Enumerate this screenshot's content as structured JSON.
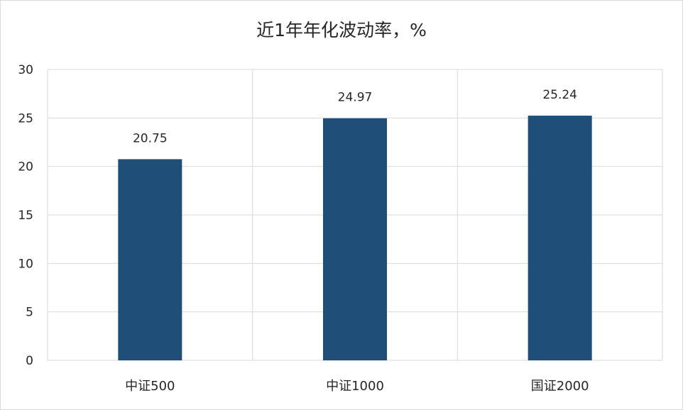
{
  "chart_data": {
    "type": "bar",
    "title": "近1年年化波动率，%",
    "categories": [
      "中证500",
      "中证1000",
      "国证2000"
    ],
    "values": [
      20.75,
      24.97,
      25.24
    ],
    "data_labels": [
      "20.75",
      "24.97",
      "25.24"
    ],
    "ylim": [
      0,
      30
    ],
    "yticks": [
      0,
      5,
      10,
      15,
      20,
      25,
      30
    ],
    "ytick_labels": [
      "0",
      "5",
      "10",
      "15",
      "20",
      "25",
      "30"
    ],
    "grid": true,
    "legend": "none",
    "bar_color": "#1f4e79",
    "grid_color": "#d9d9d9"
  }
}
